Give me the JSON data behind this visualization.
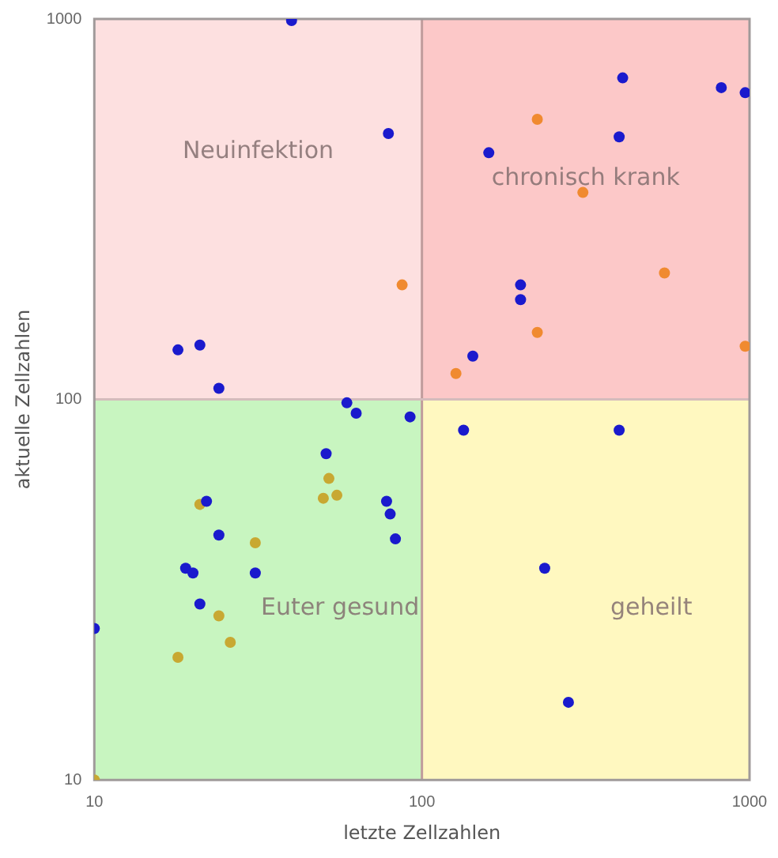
{
  "chart_data": {
    "type": "scatter",
    "xlabel": "letzte Zellzahlen",
    "ylabel": "aktuelle Zellzahlen",
    "log": "xy",
    "xlim": [
      10,
      1000
    ],
    "ylim": [
      10,
      1000
    ],
    "xticks": [
      10,
      100,
      1000
    ],
    "yticks": [
      10,
      100,
      1000
    ],
    "grid": false,
    "legend": false,
    "marker": "circle",
    "ref_lines": [
      {
        "axis": "x",
        "value": 100,
        "label": null,
        "color": "#c09c9c"
      },
      {
        "axis": "y",
        "value": 100,
        "label": null,
        "color": "#d4bcbc"
      }
    ],
    "annotations": [
      "Neuinfektion",
      "chronisch krank",
      "Euter gesund",
      "geheilt"
    ],
    "series": [
      {
        "color": "#1a1acd",
        "x": [
          40,
          79,
          18,
          21,
          24,
          59,
          63,
          92,
          410,
          820,
          970,
          400,
          160,
          200,
          200,
          143,
          51,
          22,
          24,
          19,
          20,
          31,
          21,
          10,
          78,
          80,
          83,
          134,
          400,
          237,
          280
        ],
        "values": [
          990,
          500,
          135,
          139,
          107,
          98,
          92,
          90,
          700,
          660,
          640,
          490,
          445,
          200,
          183,
          130,
          72,
          54,
          44,
          36,
          35,
          35,
          29,
          25,
          54,
          50,
          43,
          83,
          83,
          36,
          16
        ]
      },
      {
        "color": "#f08a30",
        "x": [
          225,
          310,
          550,
          225,
          127,
          970,
          87
        ],
        "values": [
          545,
          350,
          215,
          150,
          117,
          138,
          200
        ]
      },
      {
        "color": "#c8a832",
        "x": [
          21,
          52,
          50,
          55,
          31,
          24,
          26,
          18,
          10
        ],
        "values": [
          53,
          62,
          55,
          56,
          42,
          27,
          23,
          21,
          10
        ]
      }
    ]
  }
}
